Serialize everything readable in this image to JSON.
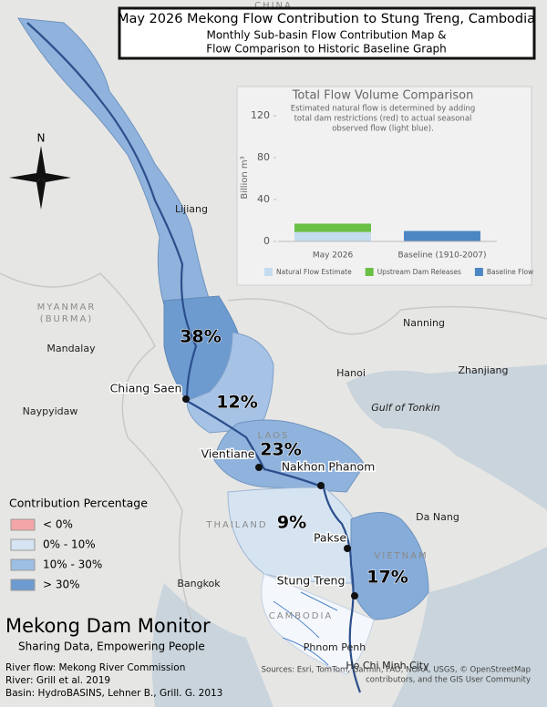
{
  "header": {
    "title": "May 2026 Mekong Flow Contribution to Stung Treng, Cambodia",
    "subtitle_lines": [
      "Monthly Sub-basin Flow Contribution Map &",
      "Flow Comparison to Historic Baseline Graph"
    ]
  },
  "chart_data": {
    "type": "bar",
    "stacked": true,
    "title": "Total Flow Volume Comparison",
    "subtitle_lines": [
      "Estimated natural flow is determined by adding",
      "total dam restrictions (red) to actual seasonal",
      "observed flow (light blue)."
    ],
    "y_label": "Billion m³",
    "categories": [
      "May 2026",
      "Baseline (1910-2007)"
    ],
    "series": [
      {
        "name": "Natural Flow Estimate",
        "color": "#c5dbef",
        "values": [
          9,
          null
        ]
      },
      {
        "name": "Upstream Dam Releases",
        "color": "#6abf45",
        "values": [
          8,
          null
        ]
      },
      {
        "name": "Baseline Flow",
        "color": "#4c87c3",
        "values": [
          null,
          10
        ]
      }
    ],
    "ylim": [
      0,
      140
    ],
    "yticks": [
      0,
      40,
      80,
      120
    ]
  },
  "map": {
    "compass": "N",
    "countries": [
      "MYANMAR",
      "(BURMA)",
      "THAILAND",
      "LAOS",
      "VIETNAM",
      "CAMBODIA",
      "CHINA"
    ],
    "places": [
      "Lijiang",
      "Nanning",
      "Hanoi",
      "Zhanjiang",
      "Mandalay",
      "Naypyidaw",
      "Bangkok",
      "Da Nang",
      "Phnom Penh",
      "Ho Chi Minh City",
      "Gulf of Tonkin"
    ],
    "stations": [
      "Chiang Saen",
      "Vientiane",
      "Nakhon Phanom",
      "Pakse",
      "Stung Treng"
    ],
    "subbasins": [
      "38%",
      "12%",
      "23%",
      "9%",
      "17%"
    ]
  },
  "legend": {
    "title": "Contribution Percentage",
    "items": [
      {
        "label": "< 0%",
        "color": "#f4a6a6"
      },
      {
        "label": "0% - 10%",
        "color": "#d6e4f2"
      },
      {
        "label": "10% - 30%",
        "color": "#9dbfe3"
      },
      {
        "label": "> 30%",
        "color": "#6d9bd0"
      }
    ]
  },
  "footer": {
    "brand": "Mekong Dam Monitor",
    "tagline": "Sharing Data, Empowering People",
    "credits": [
      "River flow: Mekong River Commission",
      "River: Grill et al. 2019",
      "Basin: HydroBASINS, Lehner B., Grill. G. 2013"
    ],
    "sources": [
      "Sources: Esri, TomTom, Garmin, FAO, NOAA, USGS, © OpenStreetMap",
      "contributors, and the GIS User Community"
    ]
  }
}
